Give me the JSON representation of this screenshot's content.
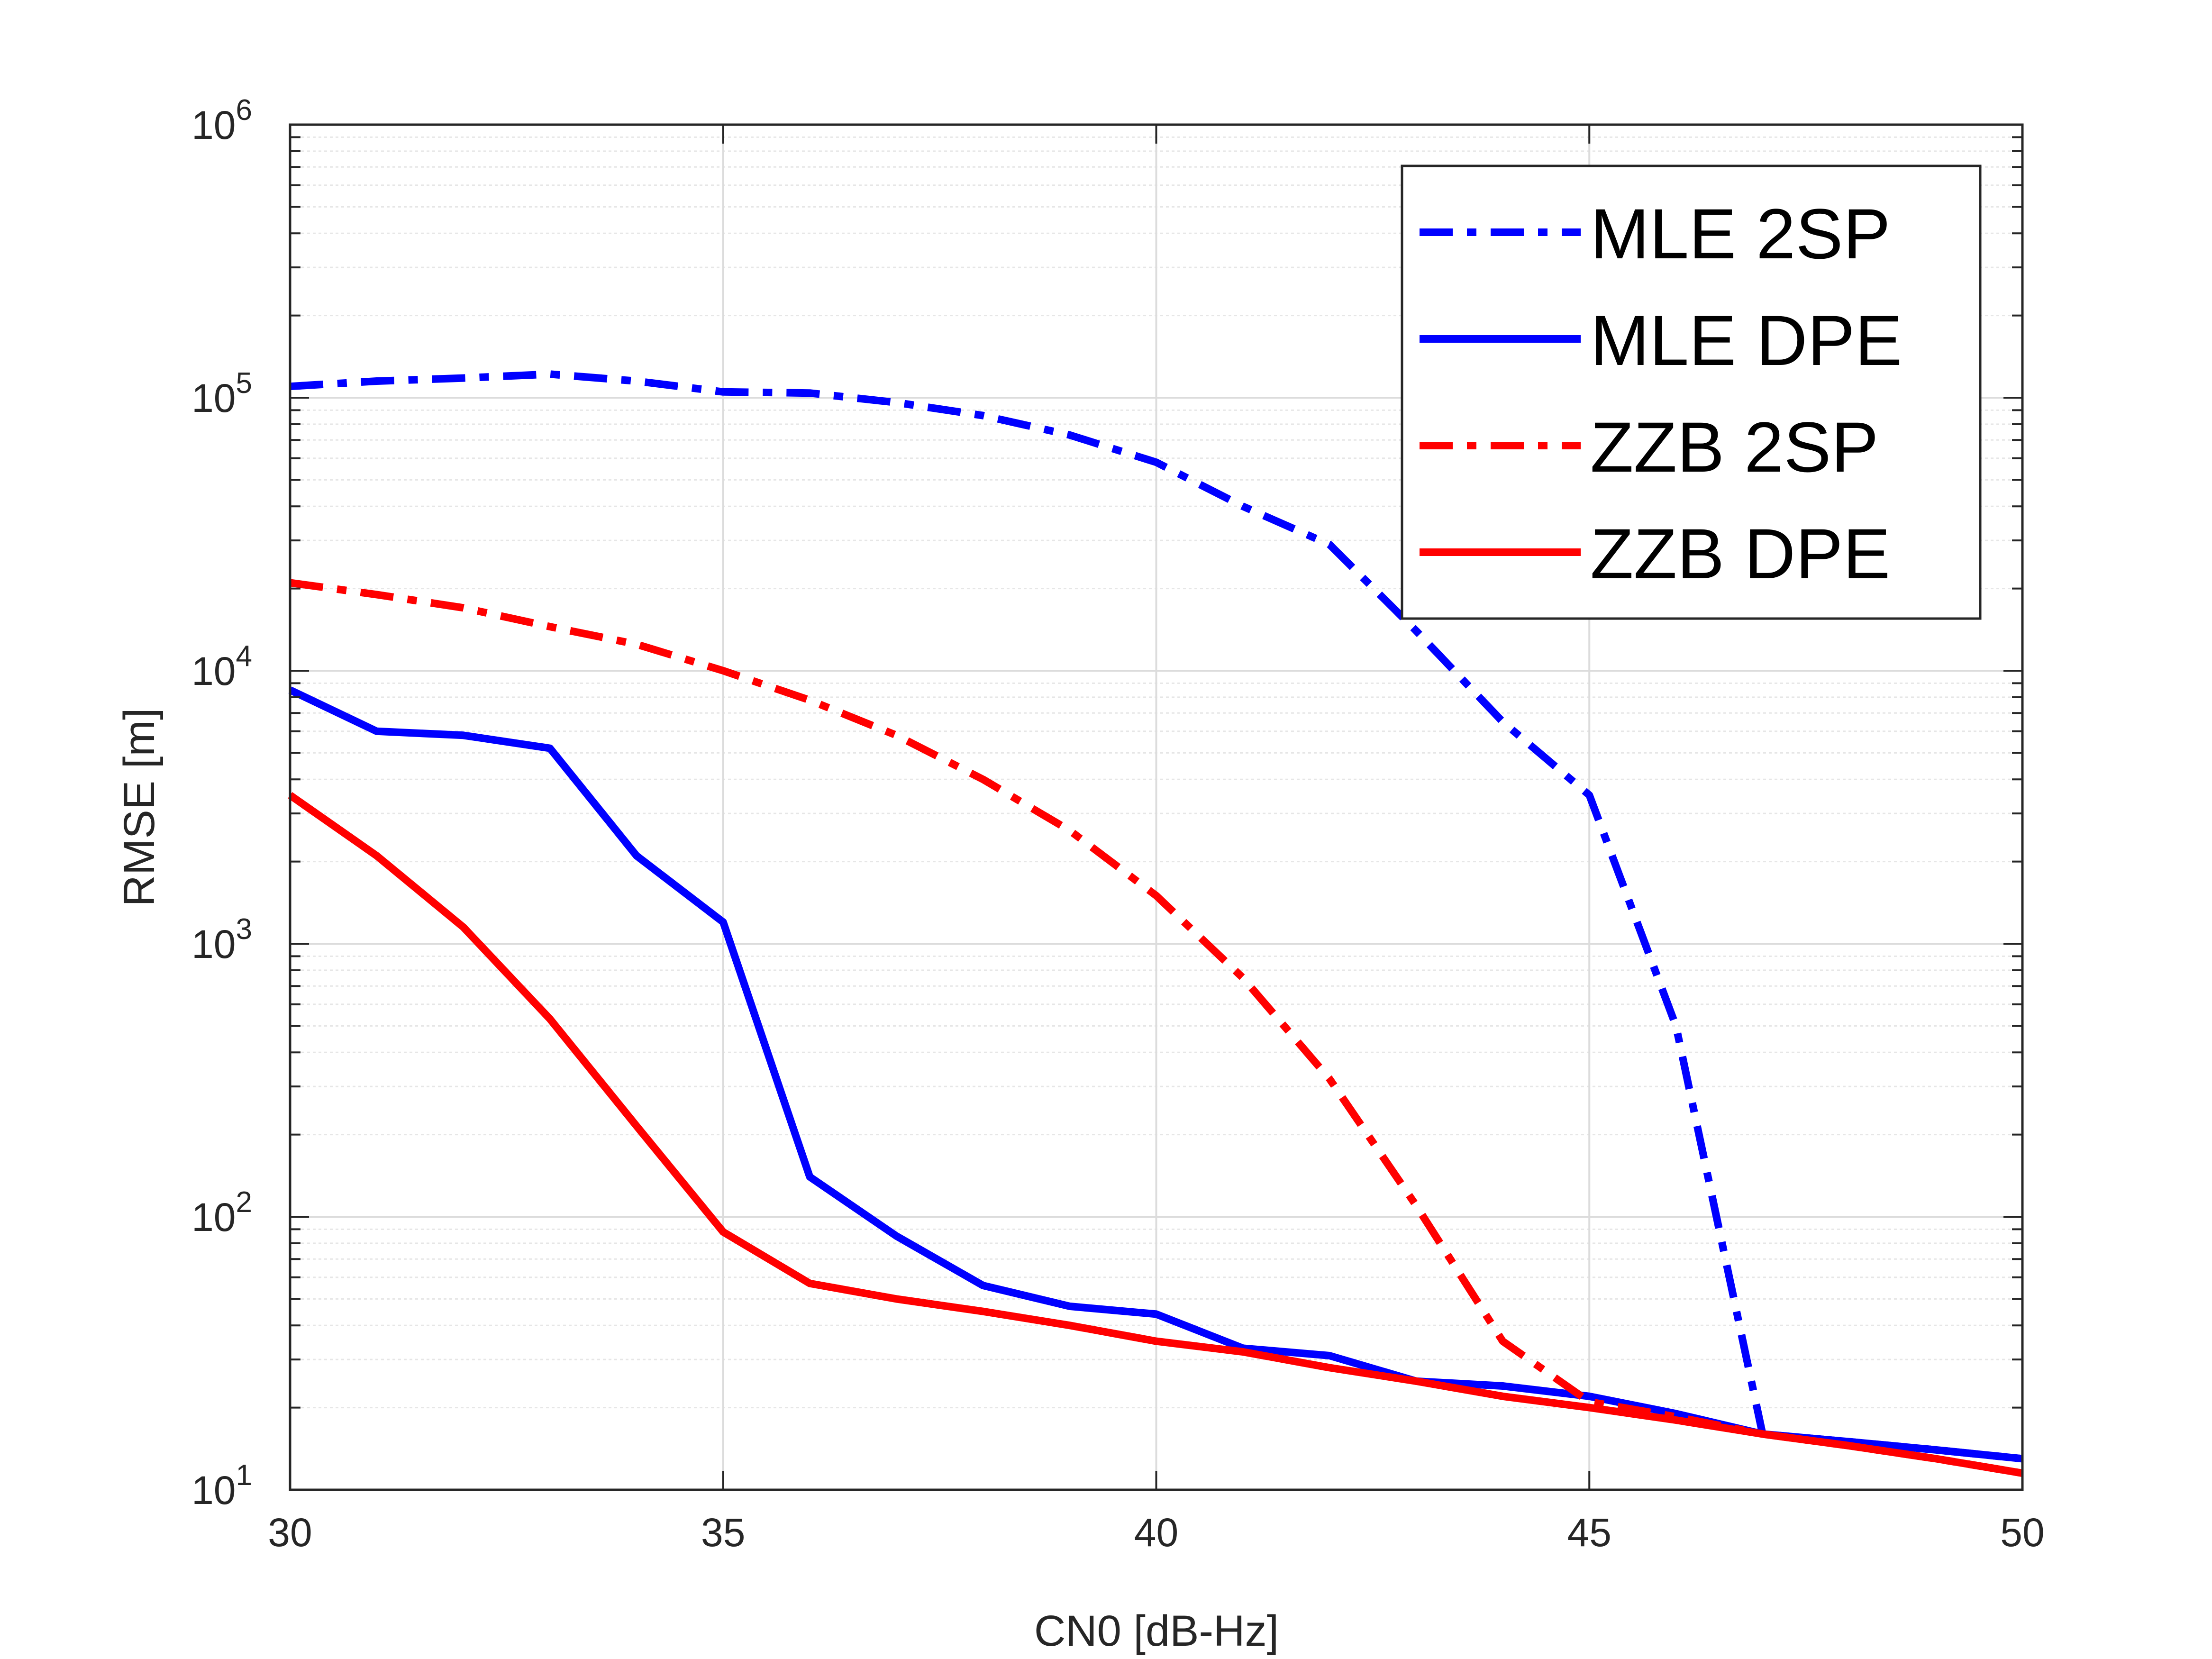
{
  "chart_data": {
    "type": "line",
    "title": "",
    "xlabel": "CN0 [dB-Hz]",
    "ylabel": "RMSE [m]",
    "xlim": [
      30,
      50
    ],
    "ylim": [
      10,
      1000000
    ],
    "yscale": "log",
    "grid": true,
    "legend_position": "top-right",
    "x_ticks": [
      "30",
      "35",
      "40",
      "45",
      "50"
    ],
    "y_ticks": [
      {
        "base": "10",
        "exp": "1"
      },
      {
        "base": "10",
        "exp": "2"
      },
      {
        "base": "10",
        "exp": "3"
      },
      {
        "base": "10",
        "exp": "4"
      },
      {
        "base": "10",
        "exp": "5"
      },
      {
        "base": "10",
        "exp": "6"
      }
    ],
    "x": [
      30,
      31,
      32,
      33,
      34,
      35,
      36,
      37,
      38,
      39,
      40,
      41,
      42,
      43,
      44,
      45,
      46,
      47,
      48,
      49,
      50
    ],
    "series": [
      {
        "name": "MLE 2SP",
        "color": "#0000ff",
        "style": "dashdot",
        "values": [
          110000,
          115000,
          118000,
          122000,
          115000,
          105000,
          104000,
          96000,
          86000,
          73000,
          58000,
          40000,
          29000,
          14000,
          6500,
          3500,
          500,
          16,
          15,
          14,
          13
        ]
      },
      {
        "name": "MLE DPE",
        "color": "#0000ff",
        "style": "solid",
        "values": [
          8500,
          6000,
          5800,
          5200,
          2100,
          1200,
          140,
          85,
          56,
          47,
          44,
          33,
          31,
          25,
          24,
          22,
          19,
          16,
          15,
          14,
          13
        ]
      },
      {
        "name": "ZZB 2SP",
        "color": "#ff0000",
        "style": "dashdot",
        "values": [
          21000,
          19000,
          17000,
          14500,
          12500,
          10000,
          7800,
          5800,
          4000,
          2600,
          1500,
          750,
          320,
          110,
          35,
          21,
          18.5,
          16,
          14.5,
          13,
          11.5
        ]
      },
      {
        "name": "ZZB DPE",
        "color": "#ff0000",
        "style": "solid",
        "values": [
          3500,
          2100,
          1150,
          530,
          215,
          88,
          57,
          50,
          45,
          40,
          35,
          32,
          28,
          25,
          22,
          20,
          18,
          16,
          14.5,
          13,
          11.5
        ]
      }
    ]
  }
}
